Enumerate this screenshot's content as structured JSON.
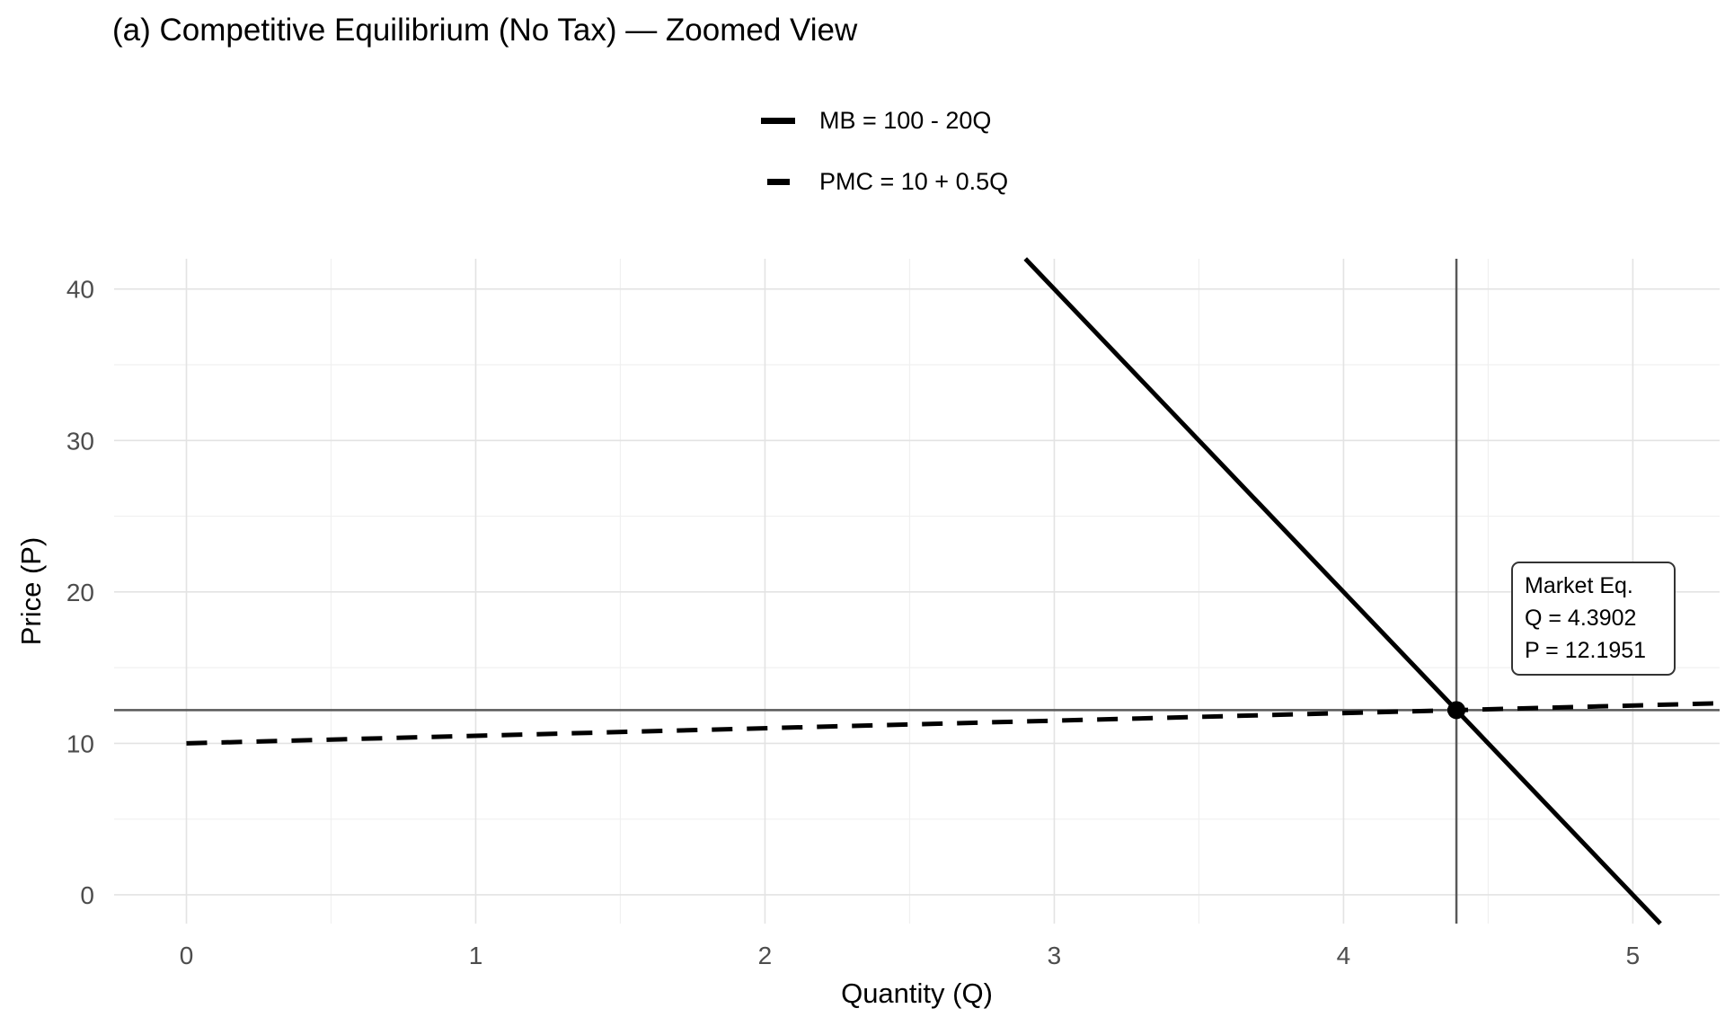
{
  "chart_data": {
    "type": "line",
    "title": "(a) Competitive Equilibrium (No Tax) — Zoomed View",
    "xlabel": "Quantity (Q)",
    "ylabel": "Price (P)",
    "x_ticks": [
      0,
      1,
      2,
      3,
      4,
      5
    ],
    "y_ticks": [
      0,
      10,
      20,
      30,
      40
    ],
    "xlim": [
      -0.25,
      5.3
    ],
    "ylim": [
      -1.9,
      42
    ],
    "q_range": [
      0,
      5.3
    ],
    "grid": true,
    "legend_position": "top-center",
    "series": [
      {
        "name": "MB = 100 - 20Q",
        "intercept": 100,
        "slope": -20,
        "dash": "solid",
        "color": "#000000"
      },
      {
        "name": "PMC = 10 + 0.5Q",
        "intercept": 10,
        "slope": 0.5,
        "dash": "dashed",
        "color": "#000000"
      }
    ],
    "equilibrium": {
      "Q": 4.3902,
      "P": 12.1951,
      "label": [
        "Market Eq.",
        "Q = 4.3902",
        "P = 12.1951"
      ]
    },
    "reference_lines": {
      "h": 12.1951,
      "v": 4.3902
    },
    "colors": {
      "line": "#000000",
      "ref_line": "#595959",
      "grid_major": "#E3E3E3",
      "grid_minor": "#F0F0F0",
      "tick_label": "#4D4D4D",
      "point": "#000000",
      "annotation_border": "#333333"
    }
  }
}
